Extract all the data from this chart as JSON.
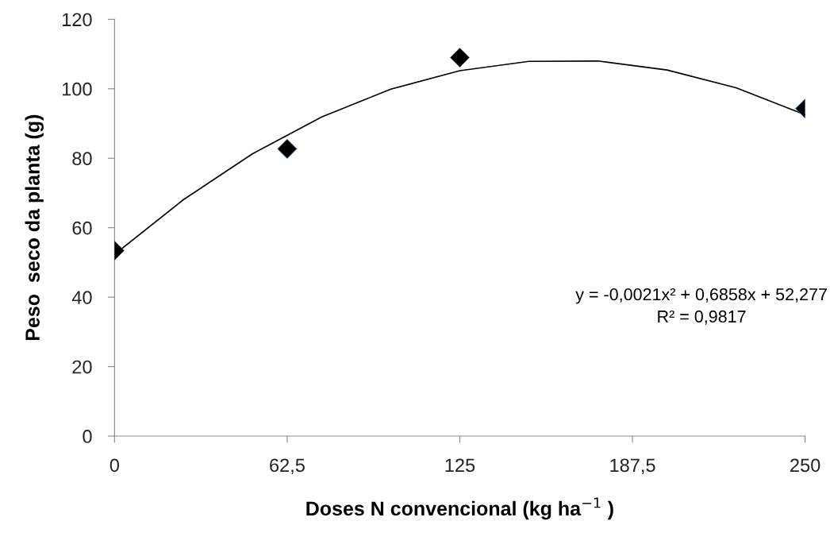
{
  "chart_data": {
    "type": "scatter",
    "xlabel": "Doses N convencional (kg ha$^{−1}$ )",
    "ylabel": "Peso  seco da planta (g)",
    "xlim": [
      0,
      250
    ],
    "ylim": [
      0,
      120
    ],
    "xticks": [
      0,
      {
        "value": 62.5,
        "label": "62,5"
      },
      125,
      {
        "value": 187.5,
        "label": "187,5"
      },
      250
    ],
    "yticks": [
      0,
      20,
      40,
      60,
      80,
      100,
      120
    ],
    "grid": false,
    "legend": false,
    "series": [
      {
        "color": "#000000",
        "marker": "diamond",
        "x": [
          0,
          62.5,
          125,
          250
        ],
        "values": [
          53.4,
          82.7,
          109,
          94.3
        ]
      },
      {
        "type": "line",
        "color": "#000000",
        "marker": "none",
        "line_style": "solid",
        "x": [
          0,
          25,
          50,
          75,
          100,
          125,
          150,
          175,
          200,
          225,
          250
        ],
        "values": [
          52.3,
          68.1,
          81.3,
          91.9,
          99.9,
          105.2,
          107.9,
          108.0,
          105.4,
          100.3,
          92.5
        ]
      }
    ],
    "annotations": [
      "y = -0,0021x² + 0,6858x + 52,277\nR² = 0,9817"
    ]
  }
}
